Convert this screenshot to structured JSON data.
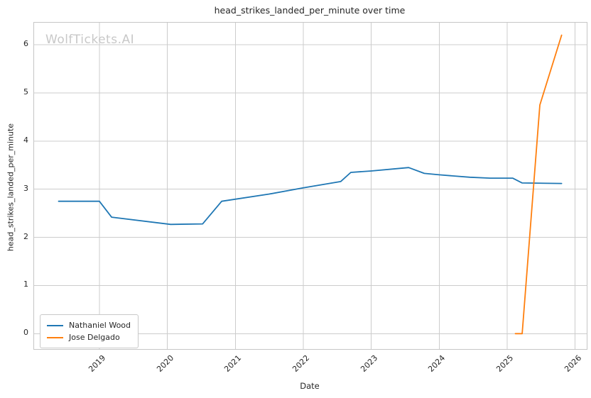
{
  "figure": {
    "title": "head_strikes_landed_per_minute over time",
    "xlabel": "Date",
    "ylabel": "head_strikes_landed_per_minute",
    "watermark": "WolfTickets.AI"
  },
  "chart_data": {
    "type": "line",
    "title": "head_strikes_landed_per_minute over time",
    "xlabel": "Date",
    "ylabel": "head_strikes_landed_per_minute",
    "xlim": [
      2018.04,
      2026.17
    ],
    "ylim": [
      -0.32,
      6.46
    ],
    "x_ticks": [
      2019,
      2020,
      2021,
      2022,
      2023,
      2024,
      2025,
      2026
    ],
    "y_ticks": [
      0,
      1,
      2,
      3,
      4,
      5,
      6
    ],
    "grid": true,
    "legend_position": "lower left",
    "colors": {
      "grid": "#cccccc",
      "axes_border": "#c6c6c6",
      "text": "#262626",
      "watermark": "#c8c8c8"
    },
    "series": [
      {
        "name": "Nathaniel Wood",
        "color": "#1f77b4",
        "points": [
          [
            2018.4,
            2.75
          ],
          [
            2019.0,
            2.75
          ],
          [
            2019.18,
            2.42
          ],
          [
            2020.05,
            2.27
          ],
          [
            2020.52,
            2.28
          ],
          [
            2020.8,
            2.75
          ],
          [
            2021.5,
            2.9
          ],
          [
            2022.0,
            3.03
          ],
          [
            2022.55,
            3.16
          ],
          [
            2022.7,
            3.35
          ],
          [
            2023.0,
            3.38
          ],
          [
            2023.55,
            3.45
          ],
          [
            2023.78,
            3.33
          ],
          [
            2024.0,
            3.3
          ],
          [
            2024.45,
            3.25
          ],
          [
            2024.75,
            3.23
          ],
          [
            2025.08,
            3.23
          ],
          [
            2025.22,
            3.13
          ],
          [
            2025.8,
            3.12
          ]
        ]
      },
      {
        "name": "Jose Delgado",
        "color": "#ff7f0e",
        "points": [
          [
            2025.12,
            0.0
          ],
          [
            2025.22,
            0.0
          ],
          [
            2025.48,
            4.75
          ],
          [
            2025.8,
            6.2
          ]
        ]
      }
    ]
  }
}
